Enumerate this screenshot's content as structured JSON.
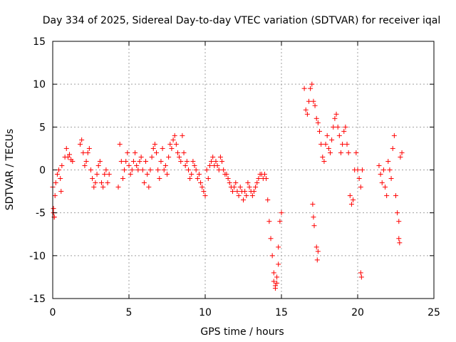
{
  "chart_data": {
    "type": "scatter",
    "title": "Day 334 of 2025, Sidereal Day-to-day VTEC variation (SDTVAR) for receiver iqal",
    "xlabel": "GPS time / hours",
    "ylabel": "SDTVAR / TECUs",
    "xlim": [
      0,
      25
    ],
    "ylim": [
      -15,
      15
    ],
    "xticks": [
      0,
      5,
      10,
      15,
      20,
      25
    ],
    "yticks": [
      -15,
      -10,
      -5,
      0,
      5,
      10,
      15
    ],
    "grid": true,
    "marker": "+",
    "color": "#ff0000",
    "series": [
      {
        "name": "SDTVAR",
        "x": [
          0.0,
          0.05,
          0.1,
          0.15,
          0.2,
          0.3,
          0.4,
          0.5,
          0.55,
          0.6,
          0.8,
          0.9,
          1.0,
          1.1,
          1.2,
          1.3,
          1.8,
          1.9,
          2.0,
          2.1,
          2.2,
          2.3,
          2.4,
          2.5,
          2.6,
          2.7,
          2.8,
          2.9,
          3.0,
          3.1,
          3.2,
          3.3,
          3.4,
          3.5,
          3.6,
          3.7,
          4.3,
          4.4,
          4.5,
          4.6,
          4.7,
          4.8,
          4.9,
          5.0,
          5.1,
          5.2,
          5.3,
          5.4,
          5.5,
          5.6,
          5.7,
          5.8,
          5.9,
          6.0,
          6.1,
          6.2,
          6.3,
          6.4,
          6.5,
          6.6,
          6.7,
          6.8,
          6.9,
          7.0,
          7.1,
          7.2,
          7.3,
          7.4,
          7.5,
          7.6,
          7.7,
          7.8,
          7.9,
          8.0,
          8.1,
          8.2,
          8.3,
          8.4,
          8.5,
          8.6,
          8.7,
          8.8,
          8.9,
          9.0,
          9.1,
          9.2,
          9.3,
          9.4,
          9.5,
          9.6,
          9.7,
          9.8,
          9.9,
          10.0,
          10.1,
          10.2,
          10.3,
          10.4,
          10.5,
          10.6,
          10.7,
          10.8,
          10.9,
          11.0,
          11.1,
          11.2,
          11.3,
          11.4,
          11.5,
          11.6,
          11.7,
          11.8,
          11.9,
          12.0,
          12.1,
          12.2,
          12.3,
          12.4,
          12.5,
          12.6,
          12.7,
          12.8,
          12.9,
          13.0,
          13.1,
          13.2,
          13.3,
          13.4,
          13.5,
          13.6,
          13.7,
          13.8,
          13.9,
          14.0,
          14.1,
          14.2,
          14.3,
          14.4,
          14.5,
          14.6,
          14.7,
          14.8,
          14.9,
          15.0,
          16.5,
          16.6,
          16.7,
          16.8,
          16.9,
          17.0,
          17.1,
          17.2,
          17.3,
          17.4,
          17.5,
          17.6,
          17.7,
          17.8,
          17.9,
          18.0,
          18.1,
          18.2,
          18.3,
          18.4,
          18.5,
          18.6,
          18.7,
          18.8,
          18.9,
          19.0,
          19.1,
          19.2,
          19.3,
          19.4,
          19.5,
          19.6,
          19.7,
          19.8,
          19.9,
          20.0,
          20.1,
          20.2,
          20.3,
          21.4,
          21.5,
          21.6,
          21.7,
          21.8,
          21.9,
          22.0,
          22.1,
          22.2,
          22.3,
          22.4,
          22.5,
          22.6,
          22.7,
          22.8,
          22.9,
          17.05,
          17.1,
          17.15,
          17.3,
          17.35,
          17.4,
          20.2,
          20.25,
          22.7,
          22.75,
          14.5,
          14.6,
          14.7,
          14.8,
          0.05,
          0.1
        ],
        "y": [
          -2.0,
          -4.5,
          -5.5,
          -3.0,
          -1.5,
          -0.5,
          0.0,
          -1.0,
          -2.5,
          0.5,
          1.5,
          2.5,
          1.5,
          1.8,
          1.2,
          1.0,
          3.0,
          3.5,
          2.0,
          0.5,
          1.0,
          2.0,
          2.5,
          0.0,
          -1.0,
          -2.0,
          -1.5,
          -0.5,
          0.5,
          1.0,
          -1.5,
          -2.0,
          -0.5,
          0.0,
          -1.5,
          -0.5,
          -2.0,
          3.0,
          1.0,
          -1.0,
          0.0,
          1.0,
          2.0,
          0.5,
          -0.5,
          0.0,
          1.0,
          2.0,
          0.5,
          0.0,
          1.0,
          1.5,
          0.0,
          -1.5,
          1.0,
          -0.5,
          -2.0,
          0.0,
          1.5,
          2.5,
          3.0,
          2.0,
          0.0,
          -1.0,
          1.0,
          2.5,
          0.0,
          0.5,
          -0.5,
          1.5,
          3.0,
          2.5,
          3.5,
          4.0,
          3.0,
          2.0,
          1.5,
          1.0,
          4.0,
          2.0,
          0.5,
          1.0,
          0.0,
          -1.0,
          -0.5,
          1.0,
          0.5,
          0.0,
          -1.0,
          -0.5,
          -1.5,
          -2.0,
          -2.5,
          -3.0,
          0.0,
          -1.0,
          0.5,
          1.0,
          1.5,
          0.5,
          1.0,
          0.5,
          0.0,
          1.5,
          1.0,
          0.0,
          -0.5,
          -0.5,
          -1.0,
          -1.5,
          -2.0,
          -2.5,
          -2.0,
          -1.5,
          -2.5,
          -3.0,
          -2.0,
          -2.5,
          -3.5,
          -2.5,
          -3.0,
          -1.5,
          -2.0,
          -2.5,
          -3.0,
          -2.5,
          -2.0,
          -1.5,
          -1.0,
          -0.5,
          -0.5,
          -1.0,
          -0.5,
          -1.0,
          -3.5,
          -6.0,
          -8.0,
          -10.0,
          -12.0,
          -13.5,
          -12.5,
          -9.0,
          -6.0,
          -5.0,
          9.5,
          7.0,
          6.5,
          8.0,
          9.5,
          10.0,
          8.0,
          7.5,
          6.0,
          5.5,
          4.5,
          3.0,
          1.5,
          1.0,
          3.0,
          4.0,
          2.5,
          2.0,
          3.5,
          5.0,
          6.0,
          6.5,
          5.0,
          4.0,
          2.0,
          3.0,
          4.5,
          5.0,
          3.0,
          2.0,
          -3.0,
          -4.0,
          -3.5,
          0.0,
          2.0,
          0.0,
          -1.0,
          -2.0,
          0.0,
          0.5,
          -0.5,
          -1.5,
          0.0,
          -2.0,
          -3.0,
          1.0,
          0.0,
          -1.0,
          2.5,
          4.0,
          -3.0,
          -5.0,
          -6.0,
          1.5,
          2.0,
          -4.0,
          -5.5,
          -6.5,
          -9.0,
          -10.5,
          -9.5,
          -12.0,
          -12.5,
          -8.0,
          -8.5,
          -13.0,
          -13.8,
          -13.2,
          -11.0,
          -5.0,
          -5.5
        ]
      }
    ]
  }
}
